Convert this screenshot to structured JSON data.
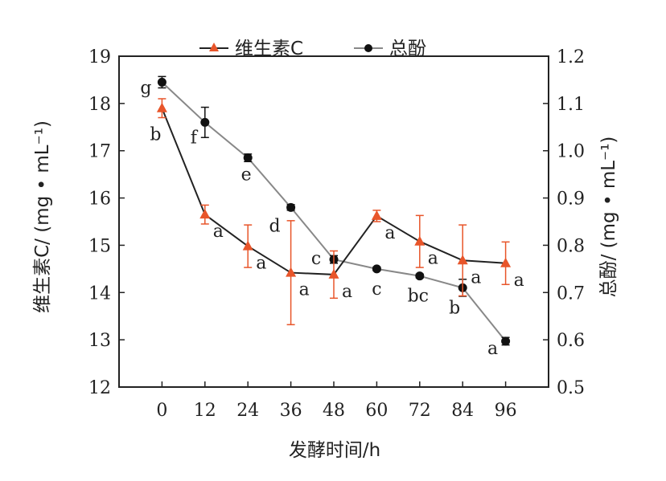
{
  "chart_data": {
    "type": "line",
    "title": "",
    "x": [
      0,
      12,
      24,
      36,
      48,
      60,
      72,
      84,
      96
    ],
    "x_tick_labels": [
      "0",
      "12",
      "24",
      "36",
      "48",
      "60",
      "72",
      "84",
      "96"
    ],
    "xlabel": "发酵时间/h",
    "xlim": [
      -12,
      108
    ],
    "ylabel_left": "维生素C/ (mg • mL⁻¹)",
    "ylim_left": [
      12,
      19
    ],
    "y_left_ticks": [
      "12",
      "13",
      "14",
      "15",
      "16",
      "17",
      "18",
      "19"
    ],
    "ylabel_right": "总酚/ (mg • mL⁻¹)",
    "ylim_right": [
      0.5,
      1.2
    ],
    "y_right_ticks": [
      "0.5",
      "0.6",
      "0.7",
      "0.8",
      "0.9",
      "1.0",
      "1.1",
      "1.2"
    ],
    "grid": false,
    "legend_position": "top-center",
    "series": [
      {
        "name": "维生素C",
        "axis": "left",
        "marker": "triangle",
        "color": "#e8552a",
        "line_color": "#222222",
        "values": [
          17.9,
          15.65,
          14.98,
          14.42,
          14.38,
          15.62,
          15.08,
          14.68,
          14.62
        ],
        "errors": [
          0.2,
          0.2,
          0.45,
          1.1,
          0.5,
          0.12,
          0.55,
          0.75,
          0.45
        ],
        "letters": [
          "b",
          "a",
          "a",
          "a",
          "a",
          "a",
          "a",
          "a",
          "a"
        ]
      },
      {
        "name": "总酚",
        "axis": "right",
        "marker": "circle",
        "color": "#111111",
        "line_color": "#888888",
        "values": [
          1.145,
          1.06,
          0.985,
          0.88,
          0.77,
          0.75,
          0.735,
          0.71,
          0.597
        ],
        "errors": [
          0.012,
          0.032,
          0.008,
          0.006,
          0.008,
          0.004,
          0.004,
          0.018,
          0.008
        ],
        "letters": [
          "g",
          "f",
          "e",
          "d",
          "c",
          "c",
          "bc",
          "b",
          "a"
        ]
      }
    ]
  }
}
